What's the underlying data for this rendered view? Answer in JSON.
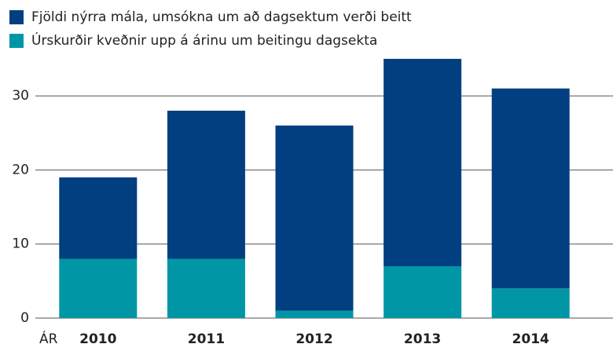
{
  "chart_data": {
    "type": "stacked_bar",
    "x_label": "ÁR",
    "categories": [
      "2010",
      "2011",
      "2012",
      "2013",
      "2014"
    ],
    "series": [
      {
        "name": "Úrskurðir kveðnir upp á árinu um beitingu dagsekta",
        "color": "#0096a6",
        "values": [
          8,
          8,
          1,
          7,
          4
        ]
      },
      {
        "name": "Fjöldi nýrra mála, umsókna um að dagsektum verði beitt",
        "color": "#023f80",
        "values": [
          11,
          20,
          25,
          28,
          27
        ]
      }
    ],
    "legend_order": [
      1,
      0
    ],
    "ylim": [
      0,
      36
    ],
    "yticks": [
      0,
      10,
      20,
      30
    ],
    "grid": true
  }
}
